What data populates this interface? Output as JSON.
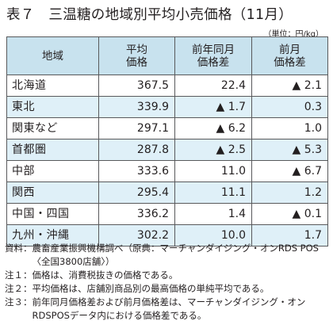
{
  "title": "表７　三温糖の地域別平均小売価格（11月）",
  "unit": "（単位：円/kg）",
  "table": {
    "headers": {
      "region": "地域",
      "avg_line1": "平均",
      "avg_line2": "価格",
      "yoy_line1": "前年同月",
      "yoy_line2": "価格差",
      "mom_line1": "前月",
      "mom_line2": "価格差"
    },
    "rows": [
      {
        "region": "北海道",
        "avg": "367.5",
        "yoy": "22.4",
        "mom": "▲ 2.1"
      },
      {
        "region": "東北",
        "avg": "339.9",
        "yoy": "▲ 1.7",
        "mom": "0.3"
      },
      {
        "region": "関東など",
        "avg": "297.1",
        "yoy": "▲ 6.2",
        "mom": "1.0"
      },
      {
        "region": "首都圏",
        "avg": "287.8",
        "yoy": "▲ 2.5",
        "mom": "▲ 5.3"
      },
      {
        "region": "中部",
        "avg": "333.6",
        "yoy": "11.0",
        "mom": "▲ 6.7"
      },
      {
        "region": "関西",
        "avg": "295.4",
        "yoy": "11.1",
        "mom": "1.2"
      },
      {
        "region": "中国・四国",
        "avg": "336.2",
        "yoy": "1.4",
        "mom": "▲ 0.1"
      },
      {
        "region": "九州・沖縄",
        "avg": "302.2",
        "yoy": "10.0",
        "mom": "1.7"
      }
    ]
  },
  "notes": [
    {
      "head": "資料：",
      "body": "農畜産業振興機構調べ（原典：マーチャンダイジング・オンRDS POS〈全国3800店舗〉）"
    },
    {
      "head": "注１：",
      "body": "価格は、消費税抜きの価格である。"
    },
    {
      "head": "注２：",
      "body": "平均価格は、店舗別商品別の最高価格の単純平均である。"
    },
    {
      "head": "注３：",
      "body": "前年同月価格差および前月価格差は、マーチャンダイジング・オンRDSPOSデータ内における価格差である。"
    }
  ]
}
